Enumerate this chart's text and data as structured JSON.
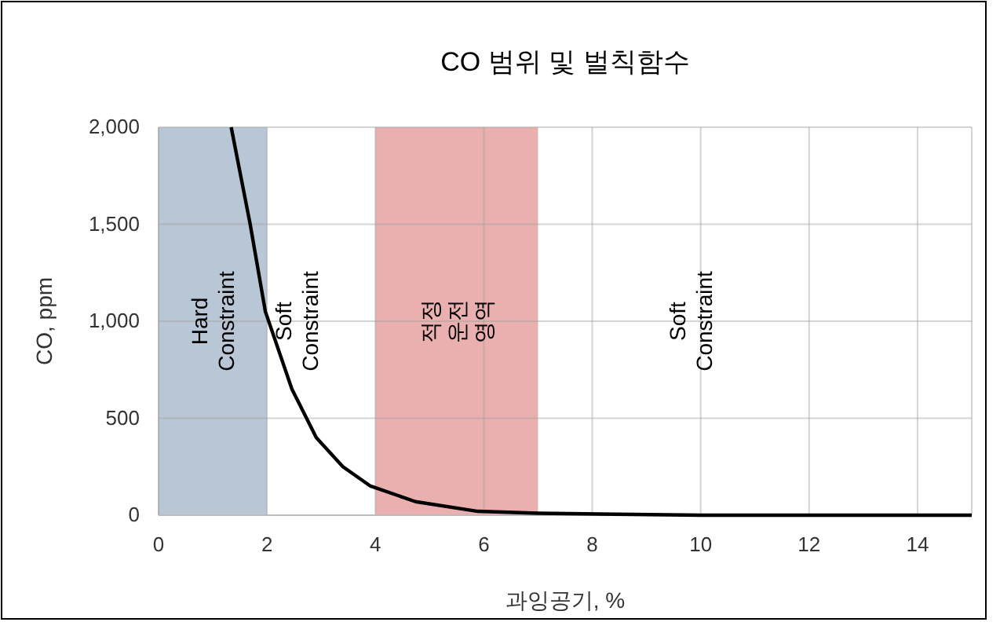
{
  "chart_data": {
    "type": "line",
    "title": "CO 범위 및 벌칙함수",
    "xlabel": "과잉공기, %",
    "ylabel": "CO, ppm",
    "xlim": [
      0,
      15
    ],
    "xticks": [
      0,
      2,
      4,
      6,
      8,
      10,
      12,
      14
    ],
    "ylim": [
      0,
      2000
    ],
    "yticks": [
      0,
      {
        "value": 500,
        "label": "500"
      },
      {
        "value": 1000,
        "label": "1,000"
      },
      {
        "value": 1500,
        "label": "1,500"
      },
      {
        "value": 2000,
        "label": "2,000"
      }
    ],
    "grid": true,
    "marker": "none",
    "line_style": "solid",
    "series": [
      {
        "color": "#000000",
        "x": [
          1.34,
          1.69,
          1.97,
          2.46,
          2.91,
          3.4,
          3.91,
          4.74,
          5.89,
          7,
          10,
          15
        ],
        "values": [
          2000,
          1500,
          1050,
          650,
          400,
          250,
          150,
          70,
          20,
          10,
          0,
          0
        ]
      }
    ],
    "bands": [
      {
        "axis": "x",
        "from": 0,
        "to": 2,
        "label": "Hard\nConstraint",
        "color": "#b8c6d6"
      },
      {
        "axis": "x",
        "from": 4,
        "to": 7,
        "label": "적정\n운전\n영역",
        "color": "#eab0b0"
      }
    ],
    "annotations": [
      "Soft\nConstraint",
      "Soft\nConstraint"
    ]
  }
}
